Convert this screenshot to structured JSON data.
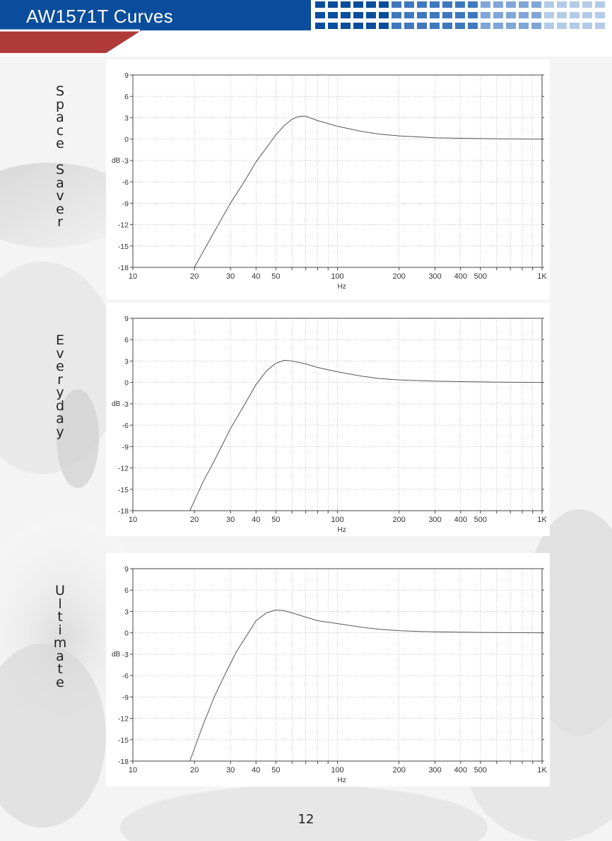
{
  "header": {
    "title": "AW1571T Curves",
    "colors": {
      "bar": "#0a4d9c",
      "accent": "#b03a3a",
      "squares": "#7fa6d6"
    }
  },
  "side_labels": [
    "Space Saver",
    "Everyday",
    "Ultimate"
  ],
  "page_number": "12",
  "chart_data": [
    {
      "type": "line",
      "title": "",
      "xlabel": "Hz",
      "ylabel": "dB",
      "x_scale": "log",
      "xlim": [
        10,
        1000
      ],
      "ylim": [
        -18,
        9
      ],
      "x_ticks": [
        10,
        20,
        30,
        40,
        50,
        100,
        200,
        300,
        400,
        500,
        1000
      ],
      "x_tick_labels": [
        "10",
        "20",
        "30",
        "40",
        "50",
        "100",
        "200",
        "300",
        "400",
        "500",
        "1K"
      ],
      "y_ticks": [
        9,
        6,
        3,
        0,
        -3,
        -6,
        -9,
        -12,
        -15,
        -18
      ],
      "grid": true,
      "series": [
        {
          "x": [
            20,
            25,
            30,
            35,
            40,
            45,
            50,
            55,
            60,
            65,
            70,
            80,
            100,
            130,
            160,
            200,
            250,
            300,
            400,
            500,
            600,
            800,
            1000
          ],
          "y": [
            -18,
            -13,
            -9,
            -6,
            -3.2,
            -1.2,
            0.6,
            1.9,
            2.8,
            3.2,
            3.2,
            2.6,
            1.8,
            1.1,
            0.7,
            0.45,
            0.3,
            0.2,
            0.12,
            0.08,
            0.05,
            0.02,
            0
          ]
        }
      ]
    },
    {
      "type": "line",
      "title": "",
      "xlabel": "Hz",
      "ylabel": "dB",
      "x_scale": "log",
      "xlim": [
        10,
        1000
      ],
      "ylim": [
        -18,
        9
      ],
      "x_ticks": [
        10,
        20,
        30,
        40,
        50,
        100,
        200,
        300,
        400,
        500,
        1000
      ],
      "x_tick_labels": [
        "10",
        "20",
        "30",
        "40",
        "50",
        "100",
        "200",
        "300",
        "400",
        "500",
        "1K"
      ],
      "y_ticks": [
        9,
        6,
        3,
        0,
        -3,
        -6,
        -9,
        -12,
        -15,
        -18
      ],
      "grid": true,
      "series": [
        {
          "x": [
            19,
            22,
            25,
            30,
            35,
            40,
            45,
            50,
            55,
            60,
            70,
            80,
            100,
            130,
            160,
            200,
            250,
            300,
            400,
            500,
            600,
            800,
            1000
          ],
          "y": [
            -18,
            -14,
            -11,
            -6.5,
            -3.2,
            -0.3,
            1.6,
            2.7,
            3.1,
            3.0,
            2.6,
            2.1,
            1.5,
            0.9,
            0.55,
            0.35,
            0.25,
            0.18,
            0.12,
            0.08,
            0.05,
            0.02,
            0
          ]
        }
      ]
    },
    {
      "type": "line",
      "title": "",
      "xlabel": "Hz",
      "ylabel": "dB",
      "x_scale": "log",
      "xlim": [
        10,
        1000
      ],
      "ylim": [
        -18,
        9
      ],
      "x_ticks": [
        10,
        20,
        30,
        40,
        50,
        100,
        200,
        300,
        400,
        500,
        1000
      ],
      "x_tick_labels": [
        "10",
        "20",
        "30",
        "40",
        "50",
        "100",
        "200",
        "300",
        "400",
        "500",
        "1K"
      ],
      "y_ticks": [
        9,
        6,
        3,
        0,
        -3,
        -6,
        -9,
        -12,
        -15,
        -18
      ],
      "grid": true,
      "series": [
        {
          "x": [
            19,
            22,
            25,
            28,
            32,
            36,
            40,
            45,
            50,
            55,
            60,
            70,
            80,
            100,
            130,
            160,
            200,
            250,
            300,
            400,
            500,
            600,
            800,
            1000
          ],
          "y": [
            -18,
            -13,
            -9,
            -6,
            -2.7,
            -0.4,
            1.7,
            2.8,
            3.2,
            3.1,
            2.8,
            2.2,
            1.7,
            1.3,
            0.8,
            0.5,
            0.3,
            0.2,
            0.15,
            0.1,
            0.06,
            0.04,
            0.02,
            0
          ]
        }
      ]
    }
  ]
}
